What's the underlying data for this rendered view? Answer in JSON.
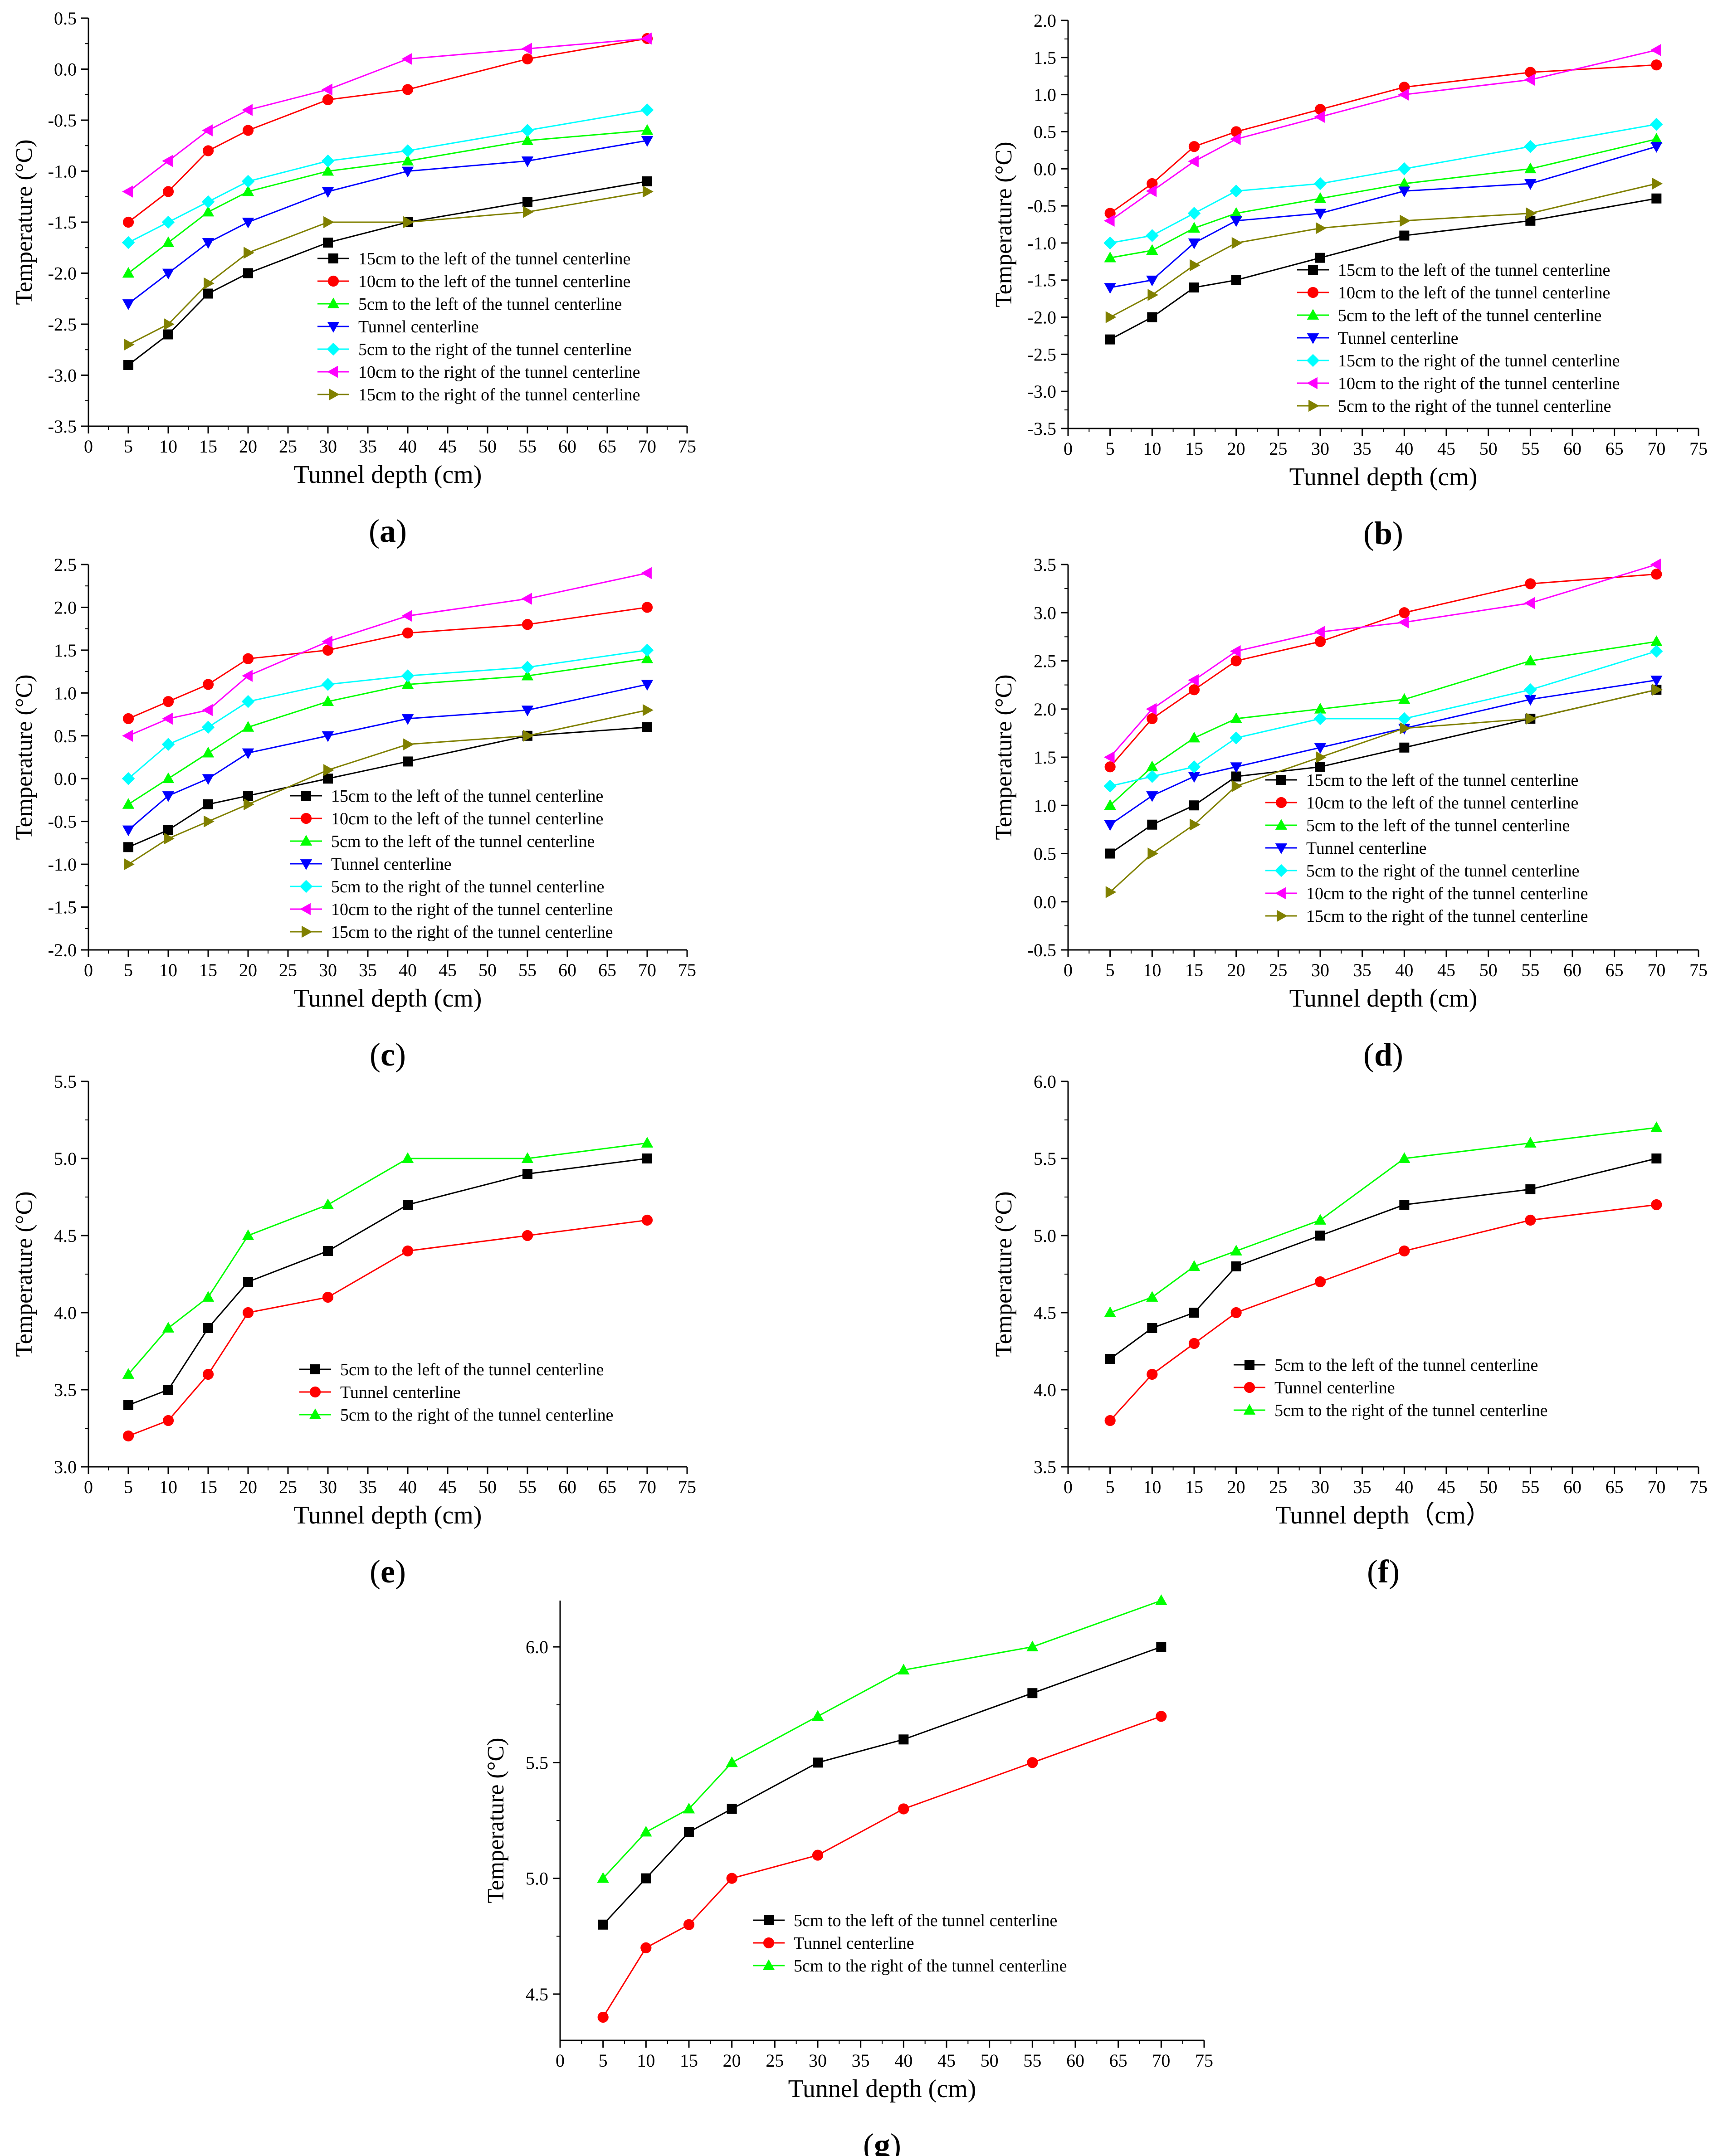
{
  "chart_data": [
    {
      "id": "a",
      "panel_label": "a",
      "type": "line",
      "x": [
        5,
        10,
        15,
        20,
        30,
        40,
        55,
        70
      ],
      "xlabel": "Tunnel depth (cm)",
      "ylabel": "Temperature (°C)",
      "xlim": [
        0,
        75
      ],
      "xticks": [
        "0",
        "5",
        "10",
        "15",
        "20",
        "25",
        "30",
        "35",
        "40",
        "45",
        "50",
        "55",
        "60",
        "65",
        "70",
        "75"
      ],
      "ylim": [
        -3.5,
        0.5
      ],
      "yticks": [
        "-3.5",
        "-3.0",
        "-2.5",
        "-2.0",
        "-1.5",
        "-1.0",
        "-0.5",
        "0.0",
        "0.5"
      ],
      "legend": "bottom-right",
      "series": [
        {
          "name": "15cm to the left of the tunnel centerline",
          "color": "#000000",
          "marker": "square",
          "values": [
            -2.9,
            -2.6,
            -2.2,
            -2.0,
            -1.7,
            -1.5,
            -1.3,
            -1.1
          ]
        },
        {
          "name": "10cm to the left of the tunnel centerline",
          "color": "#ff0000",
          "marker": "circle",
          "values": [
            -1.5,
            -1.2,
            -0.8,
            -0.6,
            -0.3,
            -0.2,
            0.1,
            0.3
          ]
        },
        {
          "name": "5cm to the left of the tunnel centerline",
          "color": "#00ff00",
          "marker": "triangle-up",
          "values": [
            -2.0,
            -1.7,
            -1.4,
            -1.2,
            -1.0,
            -0.9,
            -0.7,
            -0.6
          ]
        },
        {
          "name": "Tunnel centerline",
          "color": "#0000ff",
          "marker": "triangle-down",
          "values": [
            -2.3,
            -2.0,
            -1.7,
            -1.5,
            -1.2,
            -1.0,
            -0.9,
            -0.7
          ]
        },
        {
          "name": "5cm to the right of the tunnel centerline",
          "color": "#00ffff",
          "marker": "diamond",
          "values": [
            -1.7,
            -1.5,
            -1.3,
            -1.1,
            -0.9,
            -0.8,
            -0.6,
            -0.4
          ]
        },
        {
          "name": "10cm to the right of the tunnel centerline",
          "color": "#ff00ff",
          "marker": "triangle-left",
          "values": [
            -1.2,
            -0.9,
            -0.6,
            -0.4,
            -0.2,
            0.1,
            0.2,
            0.3
          ]
        },
        {
          "name": "15cm to the right of the tunnel centerline",
          "color": "#808000",
          "marker": "triangle-right",
          "values": [
            -2.7,
            -2.5,
            -2.1,
            -1.8,
            -1.5,
            -1.5,
            -1.4,
            -1.2
          ]
        }
      ]
    },
    {
      "id": "b",
      "panel_label": "b",
      "type": "line",
      "x": [
        5,
        10,
        15,
        20,
        30,
        40,
        55,
        70
      ],
      "xlabel": "Tunnel depth (cm)",
      "ylabel": "Temperature (°C)",
      "xlim": [
        0,
        75
      ],
      "xticks": [
        "0",
        "5",
        "10",
        "15",
        "20",
        "25",
        "30",
        "35",
        "40",
        "45",
        "50",
        "55",
        "60",
        "65",
        "70",
        "75"
      ],
      "ylim": [
        -3.5,
        2.0
      ],
      "yticks": [
        "-3.5",
        "-3.0",
        "-2.5",
        "-2.0",
        "-1.5",
        "-1.0",
        "-0.5",
        "0.0",
        "0.5",
        "1.0",
        "1.5",
        "2.0"
      ],
      "legend": "bottom-right",
      "series": [
        {
          "name": "15cm to the left of the tunnel centerline",
          "color": "#000000",
          "marker": "square",
          "values": [
            -2.3,
            -2.0,
            -1.6,
            -1.5,
            -1.2,
            -0.9,
            -0.7,
            -0.4
          ]
        },
        {
          "name": "10cm to the left of the tunnel centerline",
          "color": "#ff0000",
          "marker": "circle",
          "values": [
            -0.6,
            -0.2,
            0.3,
            0.5,
            0.8,
            1.1,
            1.3,
            1.4
          ]
        },
        {
          "name": "5cm to the left of the tunnel centerline",
          "color": "#00ff00",
          "marker": "triangle-up",
          "values": [
            -1.2,
            -1.1,
            -0.8,
            -0.6,
            -0.4,
            -0.2,
            0.0,
            0.4
          ]
        },
        {
          "name": "Tunnel centerline",
          "color": "#0000ff",
          "marker": "triangle-down",
          "values": [
            -1.6,
            -1.5,
            -1.0,
            -0.7,
            -0.6,
            -0.3,
            -0.2,
            0.3
          ]
        },
        {
          "name": "15cm to the right of the tunnel centerline",
          "color": "#00ffff",
          "marker": "diamond",
          "values": [
            -1.0,
            -0.9,
            -0.6,
            -0.3,
            -0.2,
            0.0,
            0.3,
            0.6
          ]
        },
        {
          "name": "10cm to the right of the tunnel centerline",
          "color": "#ff00ff",
          "marker": "triangle-left",
          "values": [
            -0.7,
            -0.3,
            0.1,
            0.4,
            0.7,
            1.0,
            1.2,
            1.6
          ]
        },
        {
          "name": "5cm to the right of the tunnel centerline",
          "color": "#808000",
          "marker": "triangle-right",
          "values": [
            -2.0,
            -1.7,
            -1.3,
            -1.0,
            -0.8,
            -0.7,
            -0.6,
            -0.2
          ]
        }
      ]
    },
    {
      "id": "c",
      "panel_label": "c",
      "type": "line",
      "x": [
        5,
        10,
        15,
        20,
        30,
        40,
        55,
        70
      ],
      "xlabel": "Tunnel depth (cm)",
      "ylabel": "Temperature (°C)",
      "xlim": [
        0,
        75
      ],
      "xticks": [
        "0",
        "5",
        "10",
        "15",
        "20",
        "25",
        "30",
        "35",
        "40",
        "45",
        "50",
        "55",
        "60",
        "65",
        "70",
        "75"
      ],
      "ylim": [
        -2.0,
        2.5
      ],
      "yticks": [
        "-2.0",
        "-1.5",
        "-1.0",
        "-0.5",
        "0.0",
        "0.5",
        "1.0",
        "1.5",
        "2.0",
        "2.5"
      ],
      "legend": "bottom-right",
      "series": [
        {
          "name": "15cm to the left of the tunnel centerline",
          "color": "#000000",
          "marker": "square",
          "values": [
            -0.8,
            -0.6,
            -0.3,
            -0.2,
            0.0,
            0.2,
            0.5,
            0.6
          ]
        },
        {
          "name": "10cm to the left of the tunnel centerline",
          "color": "#ff0000",
          "marker": "circle",
          "values": [
            0.7,
            0.9,
            1.1,
            1.4,
            1.5,
            1.7,
            1.8,
            2.0
          ]
        },
        {
          "name": "5cm to the left of the tunnel centerline",
          "color": "#00ff00",
          "marker": "triangle-up",
          "values": [
            -0.3,
            0.0,
            0.3,
            0.6,
            0.9,
            1.1,
            1.2,
            1.4
          ]
        },
        {
          "name": "Tunnel centerline",
          "color": "#0000ff",
          "marker": "triangle-down",
          "values": [
            -0.6,
            -0.2,
            0.0,
            0.3,
            0.5,
            0.7,
            0.8,
            1.1
          ]
        },
        {
          "name": "5cm to the right of the tunnel centerline",
          "color": "#00ffff",
          "marker": "diamond",
          "values": [
            0.0,
            0.4,
            0.6,
            0.9,
            1.1,
            1.2,
            1.3,
            1.5
          ]
        },
        {
          "name": "10cm to the right of the tunnel centerline",
          "color": "#ff00ff",
          "marker": "triangle-left",
          "values": [
            0.5,
            0.7,
            0.8,
            1.2,
            1.6,
            1.9,
            2.1,
            2.4
          ]
        },
        {
          "name": "15cm to the right of the tunnel centerline",
          "color": "#808000",
          "marker": "triangle-right",
          "values": [
            -1.0,
            -0.7,
            -0.5,
            -0.3,
            0.1,
            0.4,
            0.5,
            0.8
          ]
        }
      ]
    },
    {
      "id": "d",
      "panel_label": "d",
      "type": "line",
      "x": [
        5,
        10,
        15,
        20,
        30,
        40,
        55,
        70
      ],
      "xlabel": "Tunnel depth (cm)",
      "ylabel": "Temperature (°C)",
      "xlim": [
        0,
        75
      ],
      "xticks": [
        "0",
        "5",
        "10",
        "15",
        "20",
        "25",
        "30",
        "35",
        "40",
        "45",
        "50",
        "55",
        "60",
        "65",
        "70",
        "75"
      ],
      "ylim": [
        -0.5,
        3.5
      ],
      "yticks": [
        "-0.5",
        "0.0",
        "0.5",
        "1.0",
        "1.5",
        "2.0",
        "2.5",
        "3.0",
        "3.5"
      ],
      "legend": "bottom-right",
      "series": [
        {
          "name": "15cm to the left of the tunnel centerline",
          "color": "#000000",
          "marker": "square",
          "values": [
            0.5,
            0.8,
            1.0,
            1.3,
            1.4,
            1.6,
            1.9,
            2.2
          ]
        },
        {
          "name": "10cm to the left of the tunnel centerline",
          "color": "#ff0000",
          "marker": "circle",
          "values": [
            1.4,
            1.9,
            2.2,
            2.5,
            2.7,
            3.0,
            3.3,
            3.4
          ]
        },
        {
          "name": "5cm to the left of the tunnel centerline",
          "color": "#00ff00",
          "marker": "triangle-up",
          "values": [
            1.0,
            1.4,
            1.7,
            1.9,
            2.0,
            2.1,
            2.5,
            2.7
          ]
        },
        {
          "name": "Tunnel centerline",
          "color": "#0000ff",
          "marker": "triangle-down",
          "values": [
            0.8,
            1.1,
            1.3,
            1.4,
            1.6,
            1.8,
            2.1,
            2.3
          ]
        },
        {
          "name": "5cm to the right of the tunnel centerline",
          "color": "#00ffff",
          "marker": "diamond",
          "values": [
            1.2,
            1.3,
            1.4,
            1.7,
            1.9,
            1.9,
            2.2,
            2.6
          ]
        },
        {
          "name": "10cm to the right of the tunnel centerline",
          "color": "#ff00ff",
          "marker": "triangle-left",
          "values": [
            1.5,
            2.0,
            2.3,
            2.6,
            2.8,
            2.9,
            3.1,
            3.5
          ]
        },
        {
          "name": "15cm to the right of the tunnel centerline",
          "color": "#808000",
          "marker": "triangle-right",
          "values": [
            0.1,
            0.5,
            0.8,
            1.2,
            1.5,
            1.8,
            1.9,
            2.2
          ]
        }
      ]
    },
    {
      "id": "e",
      "panel_label": "e",
      "type": "line",
      "x": [
        5,
        10,
        15,
        20,
        30,
        40,
        55,
        70
      ],
      "xlabel": "Tunnel depth (cm)",
      "ylabel": "Temperature (°C)",
      "xlim": [
        0,
        75
      ],
      "xticks": [
        "0",
        "5",
        "10",
        "15",
        "20",
        "25",
        "30",
        "35",
        "40",
        "45",
        "50",
        "55",
        "60",
        "65",
        "70",
        "75"
      ],
      "ylim": [
        3.0,
        5.5
      ],
      "yticks": [
        "3.0",
        "3.5",
        "4.0",
        "4.5",
        "5.0",
        "5.5"
      ],
      "legend": "bottom-right",
      "series": [
        {
          "name": "5cm to the left of the tunnel centerline",
          "color": "#000000",
          "marker": "square",
          "values": [
            3.4,
            3.5,
            3.9,
            4.2,
            4.4,
            4.7,
            4.9,
            5.0
          ]
        },
        {
          "name": "Tunnel centerline",
          "color": "#ff0000",
          "marker": "circle",
          "values": [
            3.2,
            3.3,
            3.6,
            4.0,
            4.1,
            4.4,
            4.5,
            4.6
          ]
        },
        {
          "name": "5cm to the right of the tunnel centerline",
          "color": "#00ff00",
          "marker": "triangle-up",
          "values": [
            3.6,
            3.9,
            4.1,
            4.5,
            4.7,
            5.0,
            5.0,
            5.1
          ]
        }
      ]
    },
    {
      "id": "f",
      "panel_label": "f",
      "type": "line",
      "x": [
        5,
        10,
        15,
        20,
        30,
        40,
        55,
        70
      ],
      "xlabel": "Tunnel depth（cm）",
      "ylabel": "Temperature (°C)",
      "xlim": [
        0,
        75
      ],
      "xticks": [
        "0",
        "5",
        "10",
        "15",
        "20",
        "25",
        "30",
        "35",
        "40",
        "45",
        "50",
        "55",
        "60",
        "65",
        "70",
        "75"
      ],
      "ylim": [
        3.5,
        6.0
      ],
      "yticks": [
        "3.5",
        "4.0",
        "4.5",
        "5.0",
        "5.5",
        "6.0"
      ],
      "legend": "bottom-right",
      "series": [
        {
          "name": "5cm to the left of the tunnel centerline",
          "color": "#000000",
          "marker": "square",
          "values": [
            4.2,
            4.4,
            4.5,
            4.8,
            5.0,
            5.2,
            5.3,
            5.5
          ]
        },
        {
          "name": "Tunnel centerline",
          "color": "#ff0000",
          "marker": "circle",
          "values": [
            3.8,
            4.1,
            4.3,
            4.5,
            4.7,
            4.9,
            5.1,
            5.2
          ]
        },
        {
          "name": "5cm to the right of the tunnel centerline",
          "color": "#00ff00",
          "marker": "triangle-up",
          "values": [
            4.5,
            4.6,
            4.8,
            4.9,
            5.1,
            5.5,
            5.6,
            5.7
          ]
        }
      ]
    },
    {
      "id": "g",
      "panel_label": "g",
      "type": "line",
      "x": [
        5,
        10,
        15,
        20,
        30,
        40,
        55,
        70
      ],
      "xlabel": "Tunnel depth (cm)",
      "ylabel": "Temperature (°C)",
      "xlim": [
        0,
        75
      ],
      "xticks": [
        "0",
        "5",
        "10",
        "15",
        "20",
        "25",
        "30",
        "35",
        "40",
        "45",
        "50",
        "55",
        "60",
        "65",
        "70",
        "75"
      ],
      "ylim": [
        4.3,
        6.2
      ],
      "yticks": [
        "4.5",
        "5.0",
        "5.5",
        "6.0"
      ],
      "legend": "bottom-right",
      "series": [
        {
          "name": "5cm to the left of the tunnel centerline",
          "color": "#000000",
          "marker": "square",
          "values": [
            4.8,
            5.0,
            5.2,
            5.3,
            5.5,
            5.6,
            5.8,
            6.0
          ]
        },
        {
          "name": "Tunnel centerline",
          "color": "#ff0000",
          "marker": "circle",
          "values": [
            4.4,
            4.7,
            4.8,
            5.0,
            5.1,
            5.3,
            5.5,
            5.7
          ]
        },
        {
          "name": "5cm to the right of the tunnel centerline",
          "color": "#00ff00",
          "marker": "triangle-up",
          "values": [
            5.0,
            5.2,
            5.3,
            5.5,
            5.7,
            5.9,
            6.0,
            6.2
          ]
        }
      ]
    }
  ]
}
